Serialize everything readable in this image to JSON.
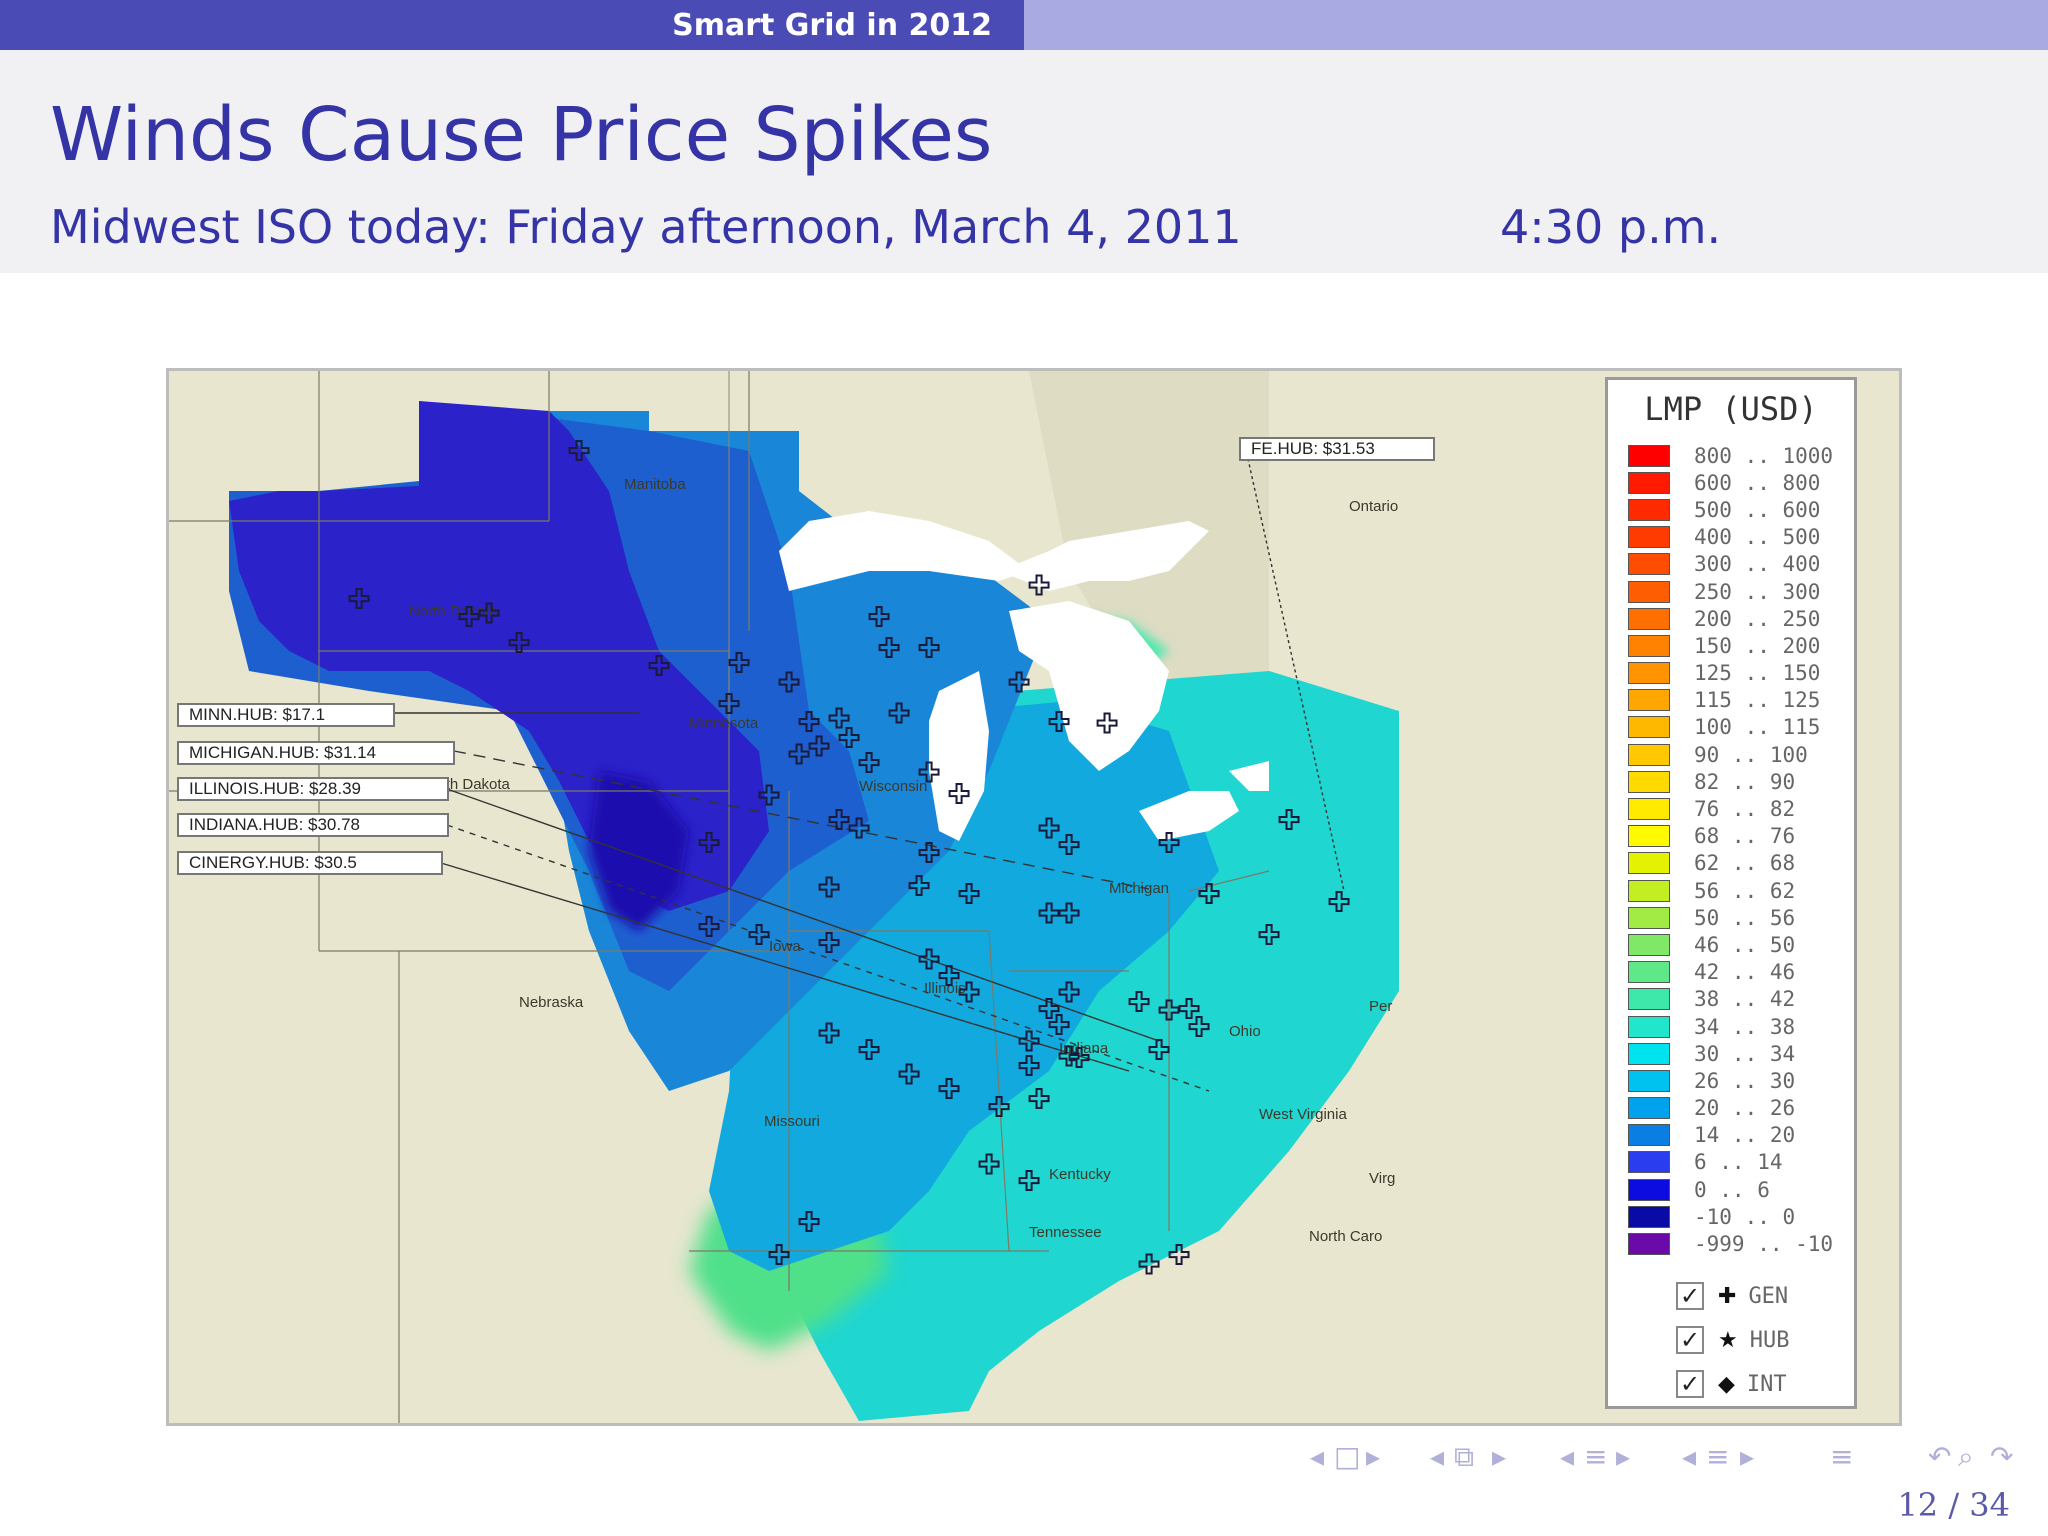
{
  "header": {
    "section_title": "Smart Grid in 2012"
  },
  "slide": {
    "title": "Winds Cause Price Spikes",
    "subtitle": "Midwest ISO today: Friday afternoon, March 4, 2011",
    "time": "4:30 p.m."
  },
  "map": {
    "regions": {
      "manitoba": "Manitoba",
      "ontario": "Ontario",
      "north_dakota": "North Dakota",
      "south_dakota": "South Dakota",
      "minnesota": "Minnesota",
      "wisconsin": "Wisconsin",
      "michigan": "Michigan",
      "iowa": "Iowa",
      "illinois": "Illinois",
      "indiana": "Indiana",
      "ohio": "Ohio",
      "nebraska": "Nebraska",
      "missouri": "Missouri",
      "kentucky": "Kentucky",
      "tennessee": "Tennessee",
      "west_virginia": "West Virginia",
      "virginia": "Virg",
      "north_carolina": "North Caro",
      "pennsylvania": "Per"
    },
    "hubs": [
      {
        "label": "MINN.HUB: $17.1"
      },
      {
        "label": "MICHIGAN.HUB: $31.14"
      },
      {
        "label": "ILLINOIS.HUB: $28.39"
      },
      {
        "label": "INDIANA.HUB: $30.78"
      },
      {
        "label": "CINERGY.HUB: $30.5"
      },
      {
        "label": "FE.HUB: $31.53"
      }
    ],
    "colors": {
      "land": "#e8e6cf",
      "water": "#ffffff",
      "deep_blue": "#2b22c9",
      "royal_blue": "#1e5fd0",
      "mid_blue": "#1a86d8",
      "light_blue": "#12a9de",
      "teal": "#1fd6d0",
      "green": "#4fe08a"
    }
  },
  "legend": {
    "title": "LMP (USD)",
    "items": [
      {
        "range": "800 .. 1000",
        "color": "#ff0000"
      },
      {
        "range": "600 .. 800",
        "color": "#ff1a00"
      },
      {
        "range": "500 .. 600",
        "color": "#ff2a00"
      },
      {
        "range": "400 .. 500",
        "color": "#ff3b00"
      },
      {
        "range": "300 .. 400",
        "color": "#ff4d00"
      },
      {
        "range": "250 .. 300",
        "color": "#ff5e00"
      },
      {
        "range": "200 .. 250",
        "color": "#ff7000"
      },
      {
        "range": "150 .. 200",
        "color": "#ff8200"
      },
      {
        "range": "125 .. 150",
        "color": "#ff9400"
      },
      {
        "range": "115 .. 125",
        "color": "#ffa600"
      },
      {
        "range": "100 .. 115",
        "color": "#ffb800"
      },
      {
        "range": "90 .. 100",
        "color": "#ffc800"
      },
      {
        "range": "82 .. 90",
        "color": "#ffda00"
      },
      {
        "range": "76 .. 82",
        "color": "#ffea00"
      },
      {
        "range": "68 .. 76",
        "color": "#fffa00"
      },
      {
        "range": "62 .. 68",
        "color": "#e2f200"
      },
      {
        "range": "56 .. 62",
        "color": "#c2ee22"
      },
      {
        "range": "50 .. 56",
        "color": "#a2ea44"
      },
      {
        "range": "46 .. 50",
        "color": "#80e866"
      },
      {
        "range": "42 .. 46",
        "color": "#5ee888"
      },
      {
        "range": "38 .. 42",
        "color": "#3ee8aa"
      },
      {
        "range": "34 .. 38",
        "color": "#22e6cc"
      },
      {
        "range": "30 .. 34",
        "color": "#00e2ee"
      },
      {
        "range": "26 .. 30",
        "color": "#00c2f0"
      },
      {
        "range": "20 .. 26",
        "color": "#00a2ee"
      },
      {
        "range": "14 .. 20",
        "color": "#0a7ee2"
      },
      {
        "range": "6 .. 14",
        "color": "#2a3ef0"
      },
      {
        "range": "0 .. 6",
        "color": "#0c0ce0"
      },
      {
        "range": "-10 .. 0",
        "color": "#0a0aa4"
      },
      {
        "range": "-999 .. -10",
        "color": "#6a0aa8"
      }
    ],
    "toggles": [
      {
        "label": "GEN",
        "checked": true
      },
      {
        "label": "HUB",
        "checked": true
      },
      {
        "label": "INT",
        "checked": true
      }
    ]
  },
  "footer": {
    "page_number": "12 / 34"
  }
}
